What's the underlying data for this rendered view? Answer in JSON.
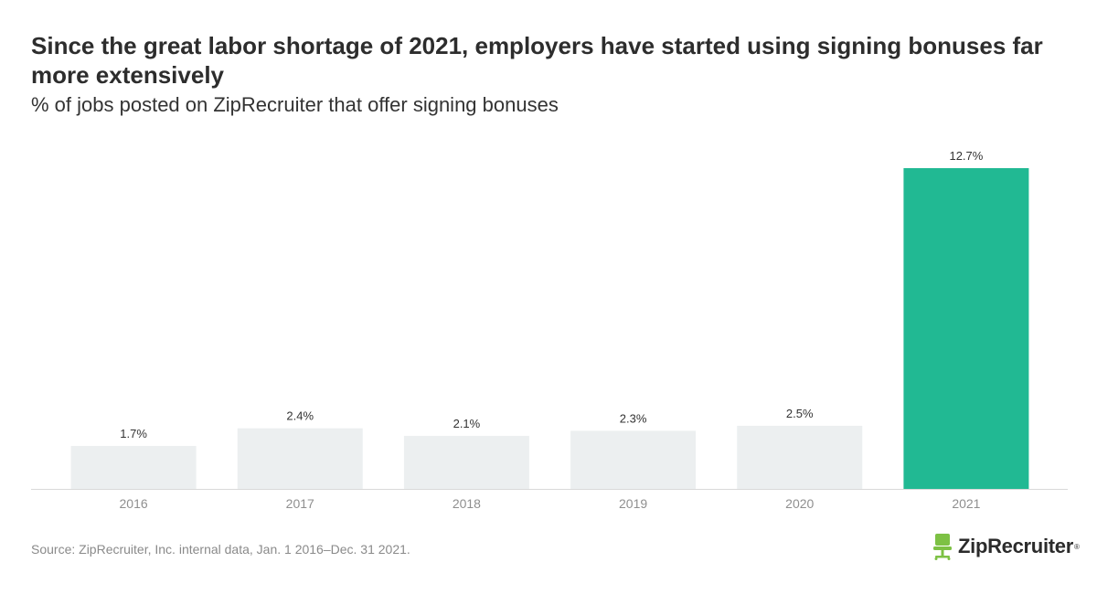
{
  "header": {
    "title": "Since the great labor shortage of 2021, employers have started using signing bonuses far more extensively",
    "subtitle": "% of jobs posted on ZipRecruiter that offer signing bonuses"
  },
  "chart_data": {
    "type": "bar",
    "categories": [
      "2016",
      "2017",
      "2018",
      "2019",
      "2020",
      "2021"
    ],
    "values": [
      1.7,
      2.4,
      2.1,
      2.3,
      2.5,
      12.7
    ],
    "value_labels": [
      "1.7%",
      "2.4%",
      "2.1%",
      "2.3%",
      "2.5%",
      "12.7%"
    ],
    "title": "Since the great labor shortage of 2021, employers have started using signing bonuses far more extensively",
    "subtitle": "% of jobs posted on ZipRecruiter that offer signing bonuses",
    "xlabel": "",
    "ylabel": "",
    "ylim": [
      0,
      12.7
    ],
    "grid": false,
    "legend": "none",
    "colors": {
      "default_bar": "#eceff0",
      "highlight_bar": "#21b993",
      "highlight_category": "2021",
      "baseline": "#d9d9d9",
      "tick_label": "#8f8f8f",
      "value_label": "#333333"
    }
  },
  "footer": {
    "source": "Source: ZipRecruiter, Inc. internal data, Jan. 1 2016–Dec. 31 2021.",
    "logo_text": "ZipRecruiter",
    "logo_mark": "®",
    "logo_icon": "chair-icon",
    "logo_color": "#7dc144"
  }
}
